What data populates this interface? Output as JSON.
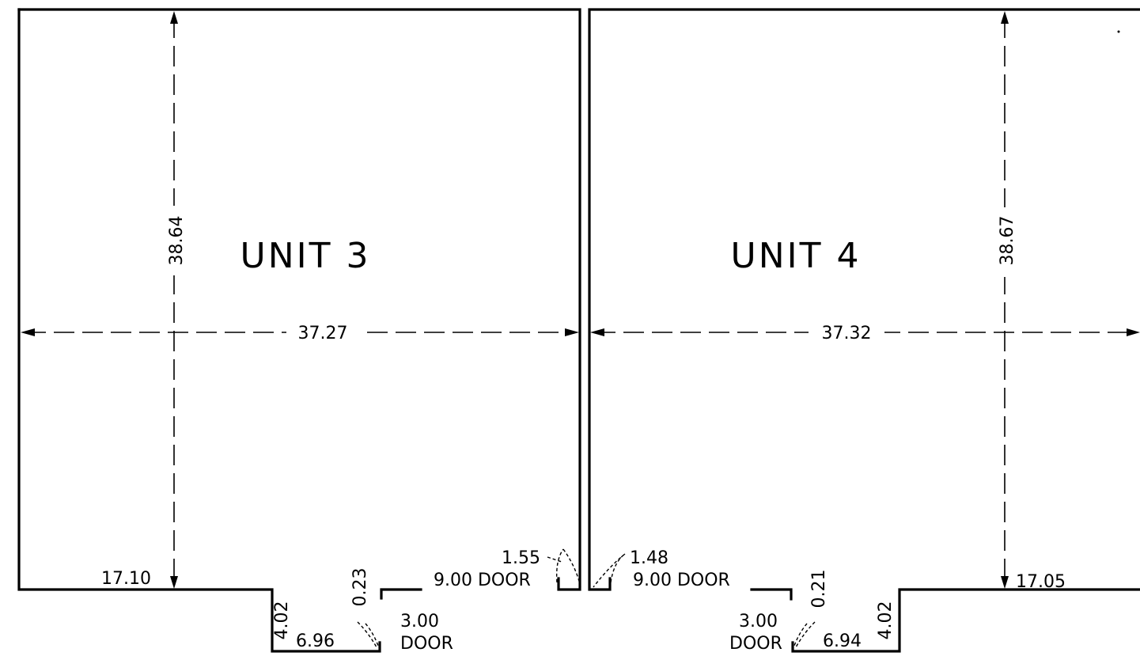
{
  "units": [
    {
      "name": "UNIT 3",
      "depth": "38.64",
      "width": "37.27",
      "offset_left": "17.10",
      "notch_depth": "4.02",
      "notch_width": "6.96",
      "jog": "0.23",
      "door_small": [
        "3.00",
        "DOOR"
      ],
      "door_large": "9.00 DOOR",
      "door_clearance": "1.55"
    },
    {
      "name": "UNIT 4",
      "depth": "38.67",
      "width": "37.32",
      "offset_right": "17.05",
      "notch_depth": "4.02",
      "notch_width": "6.94",
      "jog": "0.21",
      "door_small": [
        "3.00",
        "DOOR"
      ],
      "door_large": "9.00 DOOR",
      "door_clearance": "1.48"
    }
  ]
}
